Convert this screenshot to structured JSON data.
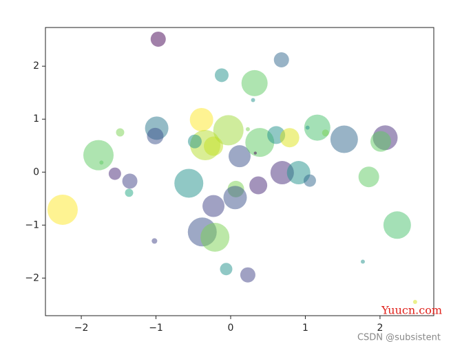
{
  "chart_data": {
    "type": "scatter",
    "x": [
      -0.97,
      0.68,
      -0.12,
      0.32,
      0.3,
      -0.39,
      -0.03,
      -0.99,
      -1.01,
      -1.48,
      -1.77,
      -1.73,
      -1.55,
      -1.35,
      -1.36,
      -2.25,
      -0.34,
      -0.48,
      -0.23,
      0.12,
      0.23,
      0.39,
      0.33,
      0.61,
      0.79,
      1.16,
      1.03,
      1.27,
      1.52,
      2.07,
      2.01,
      -0.56,
      0.07,
      0.06,
      0.37,
      0.69,
      0.91,
      1.06,
      1.85,
      -0.23,
      -0.38,
      -0.21,
      -1.02,
      2.23,
      1.77,
      -0.06,
      0.23,
      2.47
    ],
    "y": [
      2.51,
      2.12,
      1.83,
      1.68,
      1.36,
      0.99,
      0.79,
      0.83,
      0.68,
      0.75,
      0.32,
      0.18,
      -0.03,
      -0.17,
      -0.39,
      -0.71,
      0.51,
      0.58,
      0.49,
      0.3,
      0.81,
      0.56,
      0.36,
      0.7,
      0.65,
      0.84,
      0.84,
      0.74,
      0.62,
      0.65,
      0.58,
      -0.21,
      -0.32,
      -0.48,
      -0.25,
      -0.01,
      -0.01,
      -0.16,
      -0.09,
      -0.64,
      -1.13,
      -1.23,
      -1.3,
      -1.0,
      -1.69,
      -1.83,
      -1.94,
      -2.45
    ],
    "sizes": [
      247,
      247,
      204,
      737,
      18,
      590,
      988,
      590,
      294,
      73,
      988,
      18,
      165,
      247,
      73,
      988,
      988,
      204,
      400,
      522,
      18,
      900,
      10,
      345,
      400,
      737,
      18,
      51,
      816,
      661,
      459,
      900,
      294,
      590,
      345,
      590,
      590,
      165,
      459,
      522,
      900,
      900,
      33,
      816,
      18,
      165,
      247,
      18
    ],
    "colors": [
      "#440154",
      "#31688e",
      "#21918c",
      "#5ec962",
      "#21918c",
      "#fde725",
      "#a0da39",
      "#2a788e",
      "#3b528b",
      "#7ad151",
      "#5ec962",
      "#5ec962",
      "#482878",
      "#414487",
      "#22a884",
      "#fde725",
      "#b5de2b",
      "#21918c",
      "#c2df23",
      "#3b528b",
      "#7ad151",
      "#5ec962",
      "#440154",
      "#21918c",
      "#dde318",
      "#4ac16d",
      "#21918c",
      "#7ad151",
      "#31688e",
      "#472d7b",
      "#5ec962",
      "#21918c",
      "#7ad151",
      "#3b528b",
      "#482878",
      "#472d7b",
      "#21918c",
      "#31688e",
      "#5ec962",
      "#414487",
      "#3b528b",
      "#7ad151",
      "#414487",
      "#4ac16d",
      "#21918c",
      "#21918c",
      "#414487",
      "#d5e21a"
    ],
    "alpha": 0.5,
    "xlim": [
      -2.48,
      2.72
    ],
    "ylim": [
      -2.71,
      2.73
    ],
    "xticks": [
      {
        "value": -2,
        "label": "−2"
      },
      {
        "value": -1,
        "label": "−1"
      },
      0,
      1,
      2
    ],
    "yticks": [
      {
        "value": -2,
        "label": "−2"
      },
      {
        "value": -1,
        "label": "−1"
      },
      0,
      1,
      2
    ]
  },
  "watermarks": [
    "Yuucn.com",
    "CSDN @subsistent"
  ]
}
